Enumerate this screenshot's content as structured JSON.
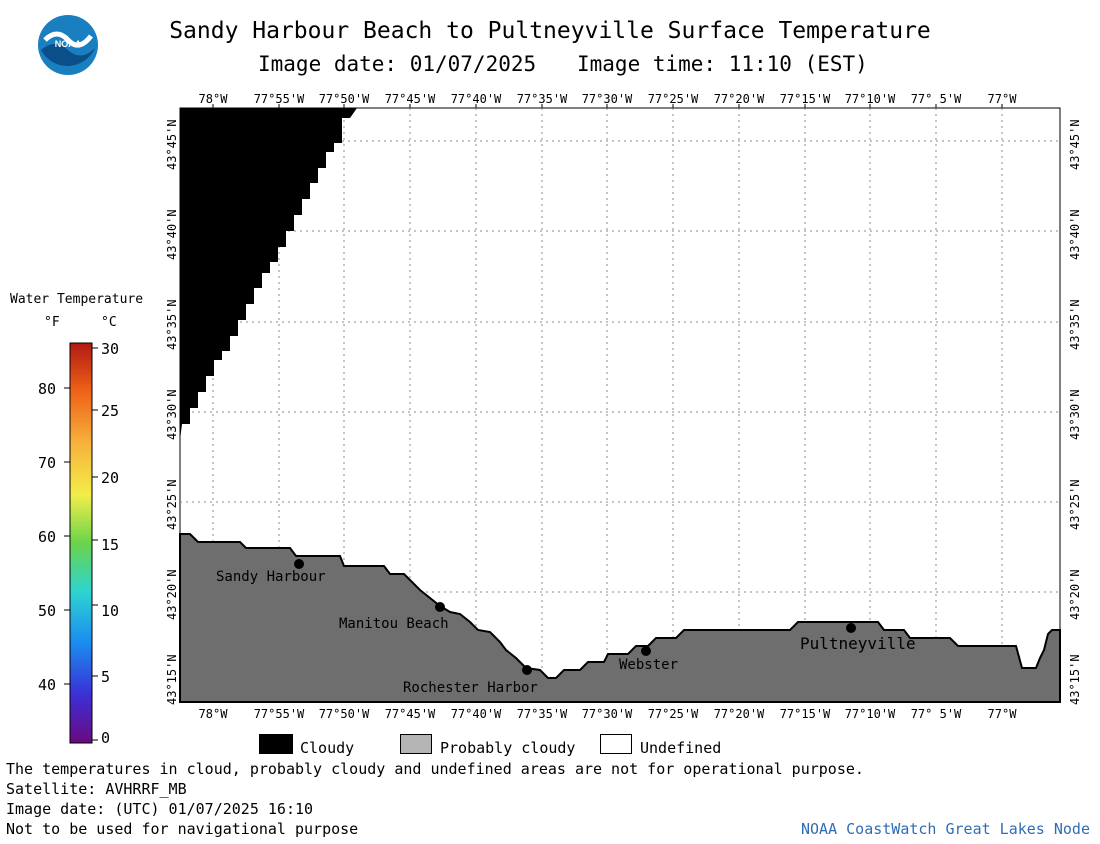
{
  "header": {
    "logo_text": "NOAA",
    "title": "Sandy Harbour Beach to Pultneyville Surface Temperature",
    "image_date": "Image date: 01/07/2025",
    "image_time": "Image time: 11:10 (EST)"
  },
  "map": {
    "lon_labels": [
      "78°W",
      "77°55'W",
      "77°50'W",
      "77°45'W",
      "77°40'W",
      "77°35'W",
      "77°30'W",
      "77°25'W",
      "77°20'W",
      "77°15'W",
      "77°10'W",
      "77° 5'W",
      "77°W"
    ],
    "lat_labels": [
      "43°45'N",
      "43°40'N",
      "43°35'N",
      "43°30'N",
      "43°25'N",
      "43°20'N",
      "43°15'N"
    ],
    "places": [
      {
        "name": "Sandy Harbour"
      },
      {
        "name": "Manitou Beach"
      },
      {
        "name": "Rochester Harbor"
      },
      {
        "name": "Webster"
      },
      {
        "name": "Pultneyville"
      }
    ],
    "colors": {
      "cloudy": "#000000",
      "land": "#6e6e6e",
      "undefined": "#ffffff",
      "grid": "#888888"
    }
  },
  "legend": {
    "title": "Water Temperature",
    "unit_f": "°F",
    "unit_c": "°C",
    "fahrenheit_ticks": [
      "80",
      "70",
      "60",
      "50",
      "40"
    ],
    "celsius_ticks": [
      "30",
      "25",
      "20",
      "15",
      "10",
      "5",
      "0"
    ],
    "items": [
      {
        "label": "Cloudy",
        "color": "#000000"
      },
      {
        "label": "Probably cloudy",
        "color": "#b4b4b4"
      },
      {
        "label": "Undefined",
        "color": "#ffffff"
      }
    ]
  },
  "footer": {
    "disclaimer": "The temperatures in cloud, probably cloudy and undefined areas are not for operational purpose.",
    "satellite": "Satellite: AVHRRF_MB",
    "utc_date": "Image date: (UTC) 01/07/2025  16:10",
    "navigation": "Not to be used for navigational purpose",
    "credit": "NOAA CoastWatch Great Lakes Node"
  }
}
